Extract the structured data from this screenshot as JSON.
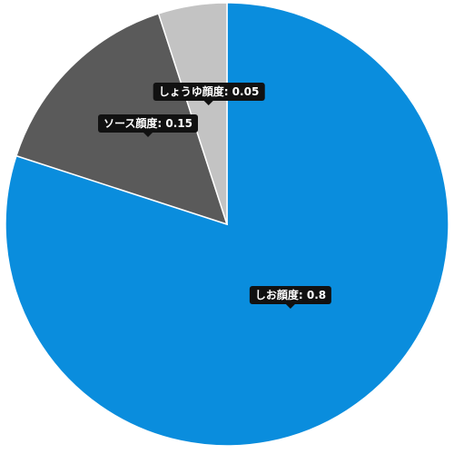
{
  "chart_data": {
    "type": "pie",
    "title": "",
    "slices": [
      {
        "label": "しお顔度",
        "value": 0.8,
        "color": "#0a8ddd"
      },
      {
        "label": "ソース顔度",
        "value": 0.15,
        "color": "#5a5a5a"
      },
      {
        "label": "しょうゆ顔度",
        "value": 0.05,
        "color": "#c3c3c3"
      }
    ],
    "label_separator": ": ",
    "slice_border_color": "#ffffff"
  }
}
